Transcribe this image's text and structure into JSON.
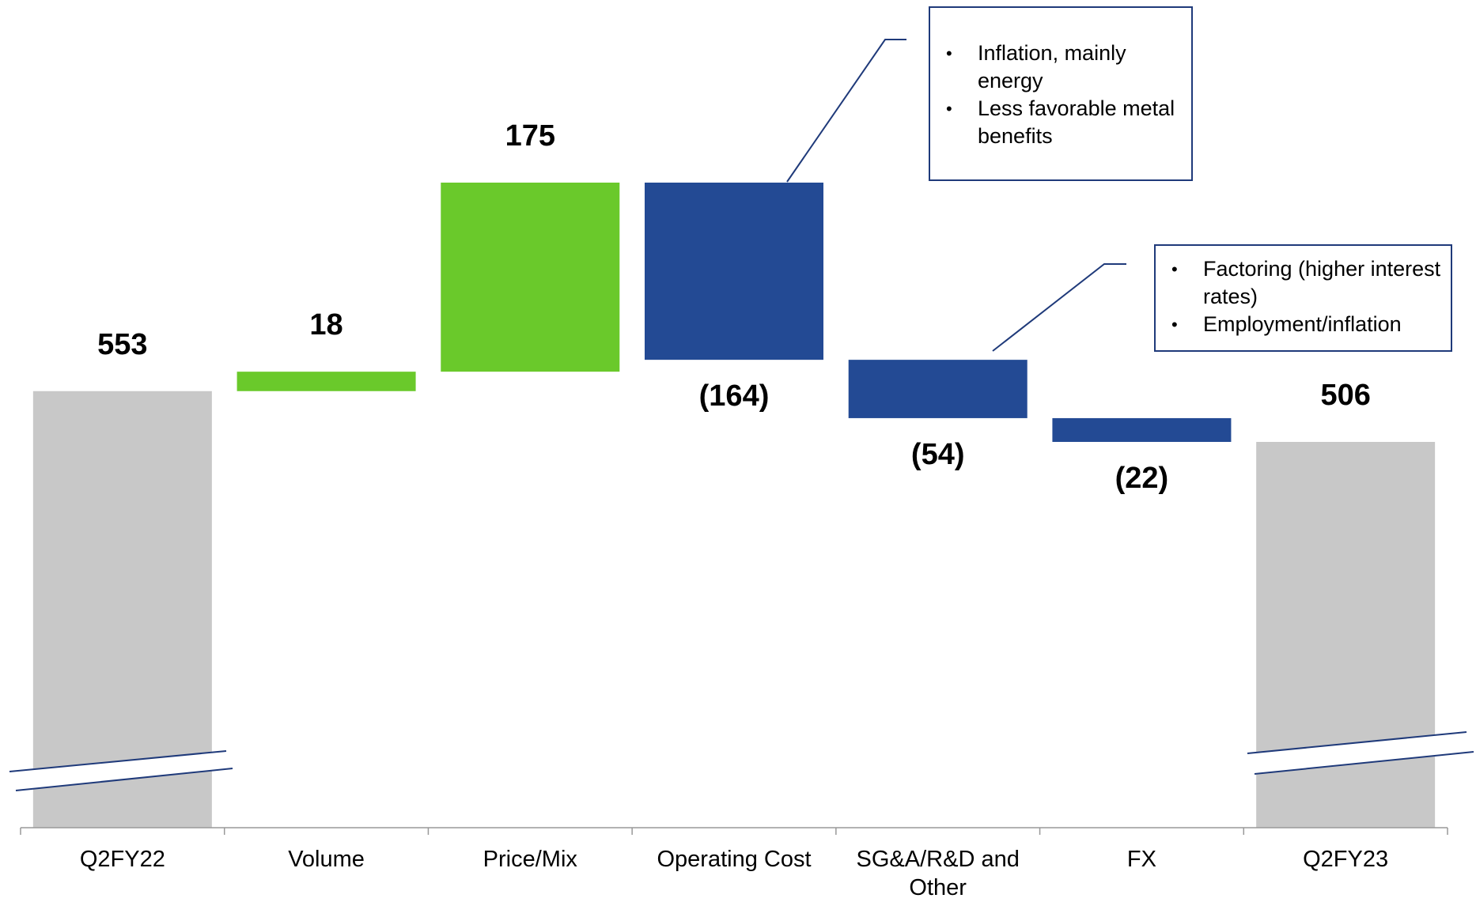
{
  "chart_data": {
    "type": "waterfall",
    "categories": [
      "Q2FY22",
      "Volume",
      "Price/Mix",
      "Operating Cost",
      "SG&A/R&D and Other",
      "FX",
      "Q2FY23"
    ],
    "values": [
      553,
      18,
      175,
      -164,
      -54,
      -22,
      506
    ],
    "value_labels": [
      "553",
      "18",
      "175",
      "(164)",
      "(54)",
      "(22)",
      "506"
    ],
    "is_total": [
      true,
      false,
      false,
      false,
      false,
      false,
      true
    ],
    "total_color": "#c8c8c8",
    "increase_color": "#6ac92b",
    "decrease_color": "#234a94",
    "annotations": [
      {
        "category": 3,
        "bullets": [
          "Inflation, mainly energy",
          "Less favorable metal benefits"
        ]
      },
      {
        "category": 4,
        "bullets": [
          "Factoring (higher interest rates)",
          "Employment/inflation"
        ]
      }
    ]
  }
}
